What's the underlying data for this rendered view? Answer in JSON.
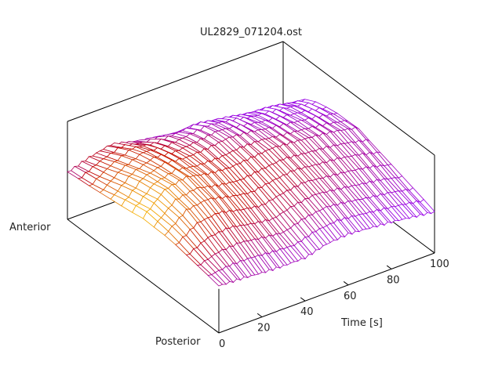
{
  "chart_data": {
    "type": "surface",
    "title": "UL2829_071204.ost",
    "xlabel": "Time [s]",
    "ylabel_front": "Posterior",
    "ylabel_back": "Anterior",
    "xlim": [
      0,
      100
    ],
    "x_ticks": [
      "0",
      "20",
      "40",
      "60",
      "80",
      "100"
    ],
    "x_tick_values": [
      0,
      20,
      40,
      60,
      80,
      100
    ],
    "time": [
      0,
      10,
      20,
      30,
      40,
      50,
      60,
      70,
      80,
      90,
      100
    ],
    "position": [
      0,
      0.1667,
      0.3333,
      0.5,
      0.6667,
      0.8333,
      1
    ],
    "z_normalized": [
      [
        0.48,
        0.47,
        0.45,
        0.44,
        0.44,
        0.5,
        0.52,
        0.5,
        0.48,
        0.45,
        0.42
      ],
      [
        0.52,
        0.6,
        0.62,
        0.58,
        0.55,
        0.62,
        0.65,
        0.62,
        0.58,
        0.55,
        0.5
      ],
      [
        0.58,
        0.75,
        0.78,
        0.72,
        0.68,
        0.72,
        0.75,
        0.72,
        0.7,
        0.66,
        0.6
      ],
      [
        0.6,
        0.8,
        0.85,
        0.8,
        0.78,
        0.8,
        0.82,
        0.8,
        0.78,
        0.75,
        0.7
      ],
      [
        0.55,
        0.75,
        0.82,
        0.8,
        0.82,
        0.85,
        0.82,
        0.78,
        0.75,
        0.72,
        0.68
      ],
      [
        0.5,
        0.65,
        0.75,
        0.72,
        0.75,
        0.78,
        0.75,
        0.7,
        0.68,
        0.65,
        0.6
      ],
      [
        0.48,
        0.55,
        0.6,
        0.55,
        0.5,
        0.45,
        0.42,
        0.4,
        0.38,
        0.36,
        0.35
      ]
    ],
    "color_value": [
      [
        0.15,
        0.12,
        0.1,
        0.08,
        0.08,
        0.06,
        0.05,
        0.05,
        0.04,
        0.03,
        0.03
      ],
      [
        0.45,
        0.42,
        0.4,
        0.35,
        0.3,
        0.3,
        0.25,
        0.2,
        0.15,
        0.12,
        0.1
      ],
      [
        0.8,
        0.72,
        0.62,
        0.55,
        0.48,
        0.45,
        0.4,
        0.32,
        0.25,
        0.2,
        0.15
      ],
      [
        0.95,
        0.85,
        0.7,
        0.6,
        0.5,
        0.45,
        0.38,
        0.3,
        0.22,
        0.18,
        0.15
      ],
      [
        0.85,
        0.75,
        0.6,
        0.5,
        0.35,
        0.22,
        0.15,
        0.12,
        0.1,
        0.08,
        0.08
      ],
      [
        0.6,
        0.65,
        0.55,
        0.4,
        0.15,
        0.08,
        0.06,
        0.05,
        0.05,
        0.05,
        0.05
      ],
      [
        0.2,
        0.4,
        0.4,
        0.2,
        0.08,
        0.05,
        0.04,
        0.03,
        0.03,
        0.03,
        0.03
      ]
    ],
    "palette": [
      "#9400ff",
      "#c00000",
      "#ffd000"
    ]
  }
}
